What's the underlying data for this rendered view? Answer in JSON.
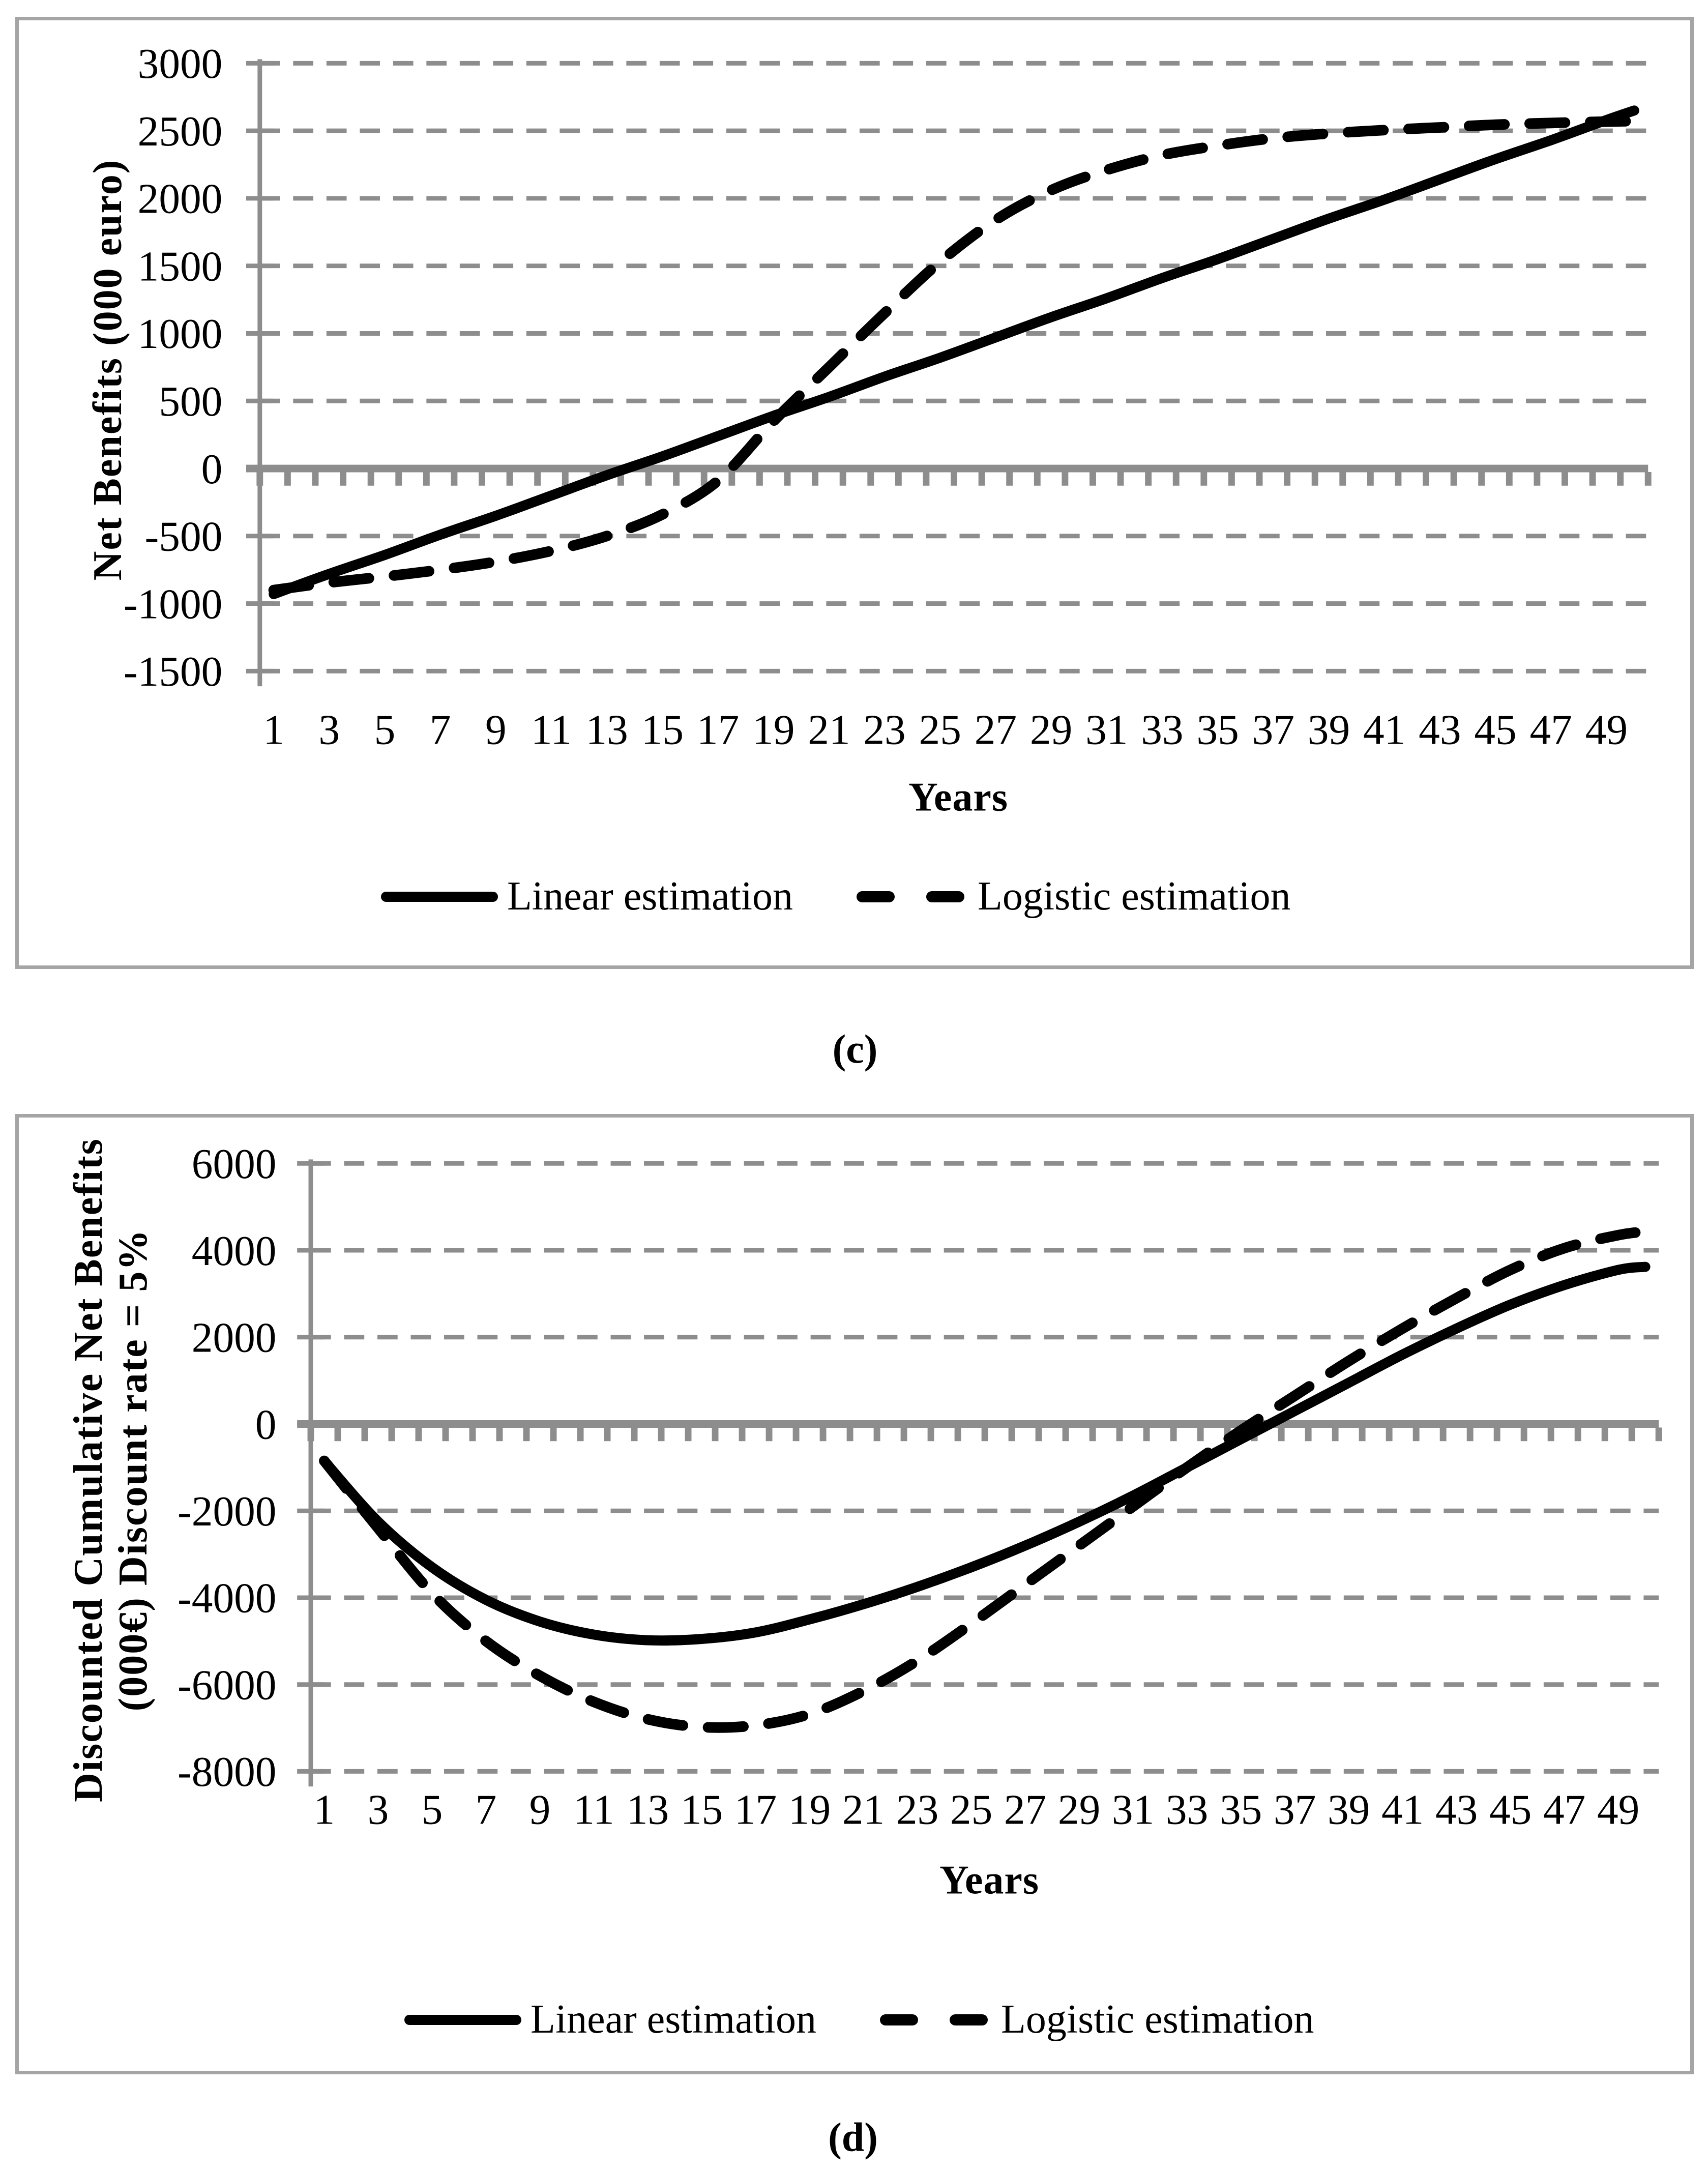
{
  "colors": {
    "grid": "#8d8d8d",
    "axis": "#8d8d8d",
    "zero_line": "#8d8d8d",
    "panel_border": "#a5a5a5",
    "series_line": "#000000",
    "text": "#000000",
    "background": "#ffffff"
  },
  "chart_data": [
    {
      "type": "line",
      "caption": "(c)",
      "xlabel": "Years",
      "ylabel": "Net Benefits (000 euro)",
      "ylabel_lines": [
        "Net Benefits (000 euro)"
      ],
      "ylim": [
        -1500,
        3000
      ],
      "ytick_step": 500,
      "yticks": [
        3000,
        2500,
        2000,
        1500,
        1000,
        500,
        0,
        -500,
        -1000,
        -1500
      ],
      "xticks": [
        1,
        3,
        5,
        7,
        9,
        11,
        13,
        15,
        17,
        19,
        21,
        23,
        25,
        27,
        29,
        31,
        33,
        35,
        37,
        39,
        41,
        43,
        45,
        47,
        49
      ],
      "grid": "horizontal-dashed",
      "legend_position": "bottom",
      "x": [
        1,
        3,
        5,
        7,
        9,
        11,
        13,
        15,
        17,
        19,
        21,
        23,
        25,
        27,
        29,
        31,
        33,
        35,
        37,
        39,
        41,
        43,
        45,
        47,
        49,
        50
      ],
      "series": [
        {
          "name": "Linear estimation",
          "style": "solid",
          "values": [
            -930,
            -780,
            -640,
            -490,
            -350,
            -200,
            -50,
            90,
            240,
            390,
            530,
            680,
            820,
            970,
            1120,
            1260,
            1410,
            1550,
            1700,
            1850,
            1990,
            2140,
            2290,
            2430,
            2580,
            2650
          ]
        },
        {
          "name": "Logistic estimation",
          "style": "dashed",
          "values": [
            -900,
            -845,
            -800,
            -750,
            -690,
            -610,
            -500,
            -340,
            -90,
            350,
            750,
            1150,
            1530,
            1840,
            2060,
            2210,
            2320,
            2390,
            2445,
            2480,
            2505,
            2525,
            2545,
            2558,
            2568,
            2572
          ]
        }
      ]
    },
    {
      "type": "line",
      "caption": "(d)",
      "xlabel": "Years",
      "ylabel": "Discounted Cumulative Net Benefits (000€) Discount rate = 5%",
      "ylabel_lines": [
        "Discounted Cumulative Net Benefits",
        "(000€) Discount rate = 5%"
      ],
      "ylim": [
        -8000,
        6000
      ],
      "ytick_step": 2000,
      "yticks": [
        6000,
        4000,
        2000,
        0,
        -2000,
        -4000,
        -6000,
        -8000
      ],
      "xticks": [
        1,
        3,
        5,
        7,
        9,
        11,
        13,
        15,
        17,
        19,
        21,
        23,
        25,
        27,
        29,
        31,
        33,
        35,
        37,
        39,
        41,
        43,
        45,
        47,
        49
      ],
      "grid": "horizontal-dashed",
      "legend_position": "bottom",
      "x": [
        1,
        3,
        5,
        7,
        9,
        11,
        13,
        15,
        17,
        19,
        21,
        23,
        25,
        27,
        29,
        31,
        33,
        35,
        37,
        39,
        41,
        43,
        45,
        47,
        49,
        50
      ],
      "series": [
        {
          "name": "Linear estimation",
          "style": "solid",
          "values": [
            -850,
            -2250,
            -3300,
            -4050,
            -4550,
            -4850,
            -4980,
            -4950,
            -4800,
            -4500,
            -4150,
            -3750,
            -3300,
            -2800,
            -2250,
            -1650,
            -1000,
            -350,
            300,
            950,
            1600,
            2200,
            2750,
            3200,
            3550,
            3620
          ]
        },
        {
          "name": "Logistic estimation",
          "style": "dashed",
          "values": [
            -850,
            -2400,
            -3900,
            -5000,
            -5800,
            -6400,
            -6800,
            -6980,
            -6940,
            -6680,
            -6150,
            -5450,
            -4600,
            -3700,
            -2800,
            -1900,
            -1000,
            -150,
            650,
            1450,
            2200,
            2900,
            3550,
            4050,
            4350,
            4430
          ]
        }
      ]
    }
  ]
}
